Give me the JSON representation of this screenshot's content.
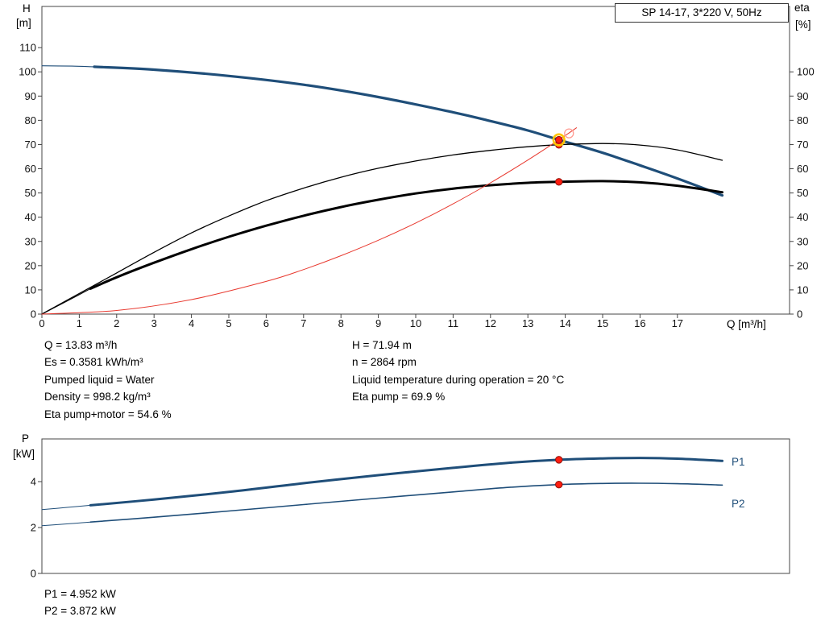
{
  "title_box": "SP 14-17, 3*220 V, 50Hz",
  "axis_labels": {
    "h": "H",
    "h_unit": "[m]",
    "eta": "eta",
    "eta_unit": "[%]",
    "q": "Q [m³/h]",
    "p": "P",
    "p_unit": "[kW]"
  },
  "colors": {
    "curve_blue": "#1f4e79",
    "curve_black": "#000000",
    "curve_red": "#e8392f",
    "marker_red": "#ff1d10",
    "marker_edge": "#8f120b",
    "marker_ring": "#ffc400",
    "marker_open": "#ff9d94",
    "axis": "#444444"
  },
  "info": {
    "left": [
      "Q = 13.83 m³/h",
      "Es = 0.3581 kWh/m³",
      "Pumped liquid = Water",
      "Density = 998.2 kg/m³",
      "Eta pump+motor = 54.6 %"
    ],
    "right": [
      "H = 71.94 m",
      "n = 2864 rpm",
      "Liquid temperature during operation = 20 °C",
      "Eta pump = 69.9 %"
    ],
    "power": [
      "P1 = 4.952 kW",
      "P2 = 3.872 kW"
    ]
  },
  "chart_data": [
    {
      "type": "line",
      "title": "SP 14-17, 3*220 V, 50Hz",
      "xlabel": "Q [m³/h]",
      "ylabel_left": "H [m]",
      "ylabel_right": "eta [%]",
      "xlim": [
        0,
        20
      ],
      "ylim": [
        0,
        127
      ],
      "grid": false,
      "x_ticks": [
        0,
        1,
        2,
        3,
        4,
        5,
        6,
        7,
        8,
        9,
        10,
        11,
        12,
        13,
        14,
        15,
        16,
        17
      ],
      "y_ticks_left": [
        0,
        10,
        20,
        30,
        40,
        50,
        60,
        70,
        80,
        90,
        100,
        110
      ],
      "y_ticks_right": [
        0,
        10,
        20,
        30,
        40,
        50,
        60,
        70,
        80,
        90,
        100
      ],
      "series": [
        {
          "name": "head-curve-lead",
          "axis": "left",
          "color": "#1f4e79",
          "width": 1.1,
          "points": [
            [
              0,
              102.5
            ],
            [
              0.8,
              102.35
            ],
            [
              1.4,
              102.1
            ]
          ]
        },
        {
          "name": "head-curve",
          "axis": "left",
          "color": "#1f4e79",
          "width": 3.2,
          "points": [
            [
              1.4,
              102.1
            ],
            [
              3,
              100.9
            ],
            [
              5,
              98.3
            ],
            [
              7,
              94.7
            ],
            [
              9,
              89.6
            ],
            [
              11,
              83.3
            ],
            [
              12,
              79.7
            ],
            [
              13,
              75.8
            ],
            [
              13.83,
              71.94
            ],
            [
              15,
              66.6
            ],
            [
              16,
              61.4
            ],
            [
              17,
              56.0
            ],
            [
              18.2,
              49.0
            ]
          ]
        },
        {
          "name": "eta-pump-curve",
          "axis": "right",
          "color": "#000000",
          "width": 1.3,
          "points": [
            [
              0,
              0
            ],
            [
              1,
              8.5
            ],
            [
              2,
              17
            ],
            [
              3,
              25.5
            ],
            [
              4,
              33.5
            ],
            [
              5,
              40.5
            ],
            [
              6,
              46.8
            ],
            [
              7,
              52
            ],
            [
              8,
              56.5
            ],
            [
              9,
              60.2
            ],
            [
              10,
              63.2
            ],
            [
              11,
              65.7
            ],
            [
              12,
              67.6
            ],
            [
              13,
              69.1
            ],
            [
              13.83,
              69.9
            ],
            [
              15,
              70.4
            ],
            [
              16,
              69.8
            ],
            [
              17,
              67.8
            ],
            [
              18.2,
              63.5
            ]
          ]
        },
        {
          "name": "eta-pump-motor-lead",
          "axis": "right",
          "color": "#000000",
          "width": 1.0,
          "points": [
            [
              0,
              0
            ],
            [
              0.7,
              5.6
            ],
            [
              1.3,
              10.5
            ]
          ]
        },
        {
          "name": "eta-pump-motor-curve",
          "axis": "right",
          "color": "#000000",
          "width": 3.0,
          "points": [
            [
              1.3,
              10.5
            ],
            [
              2,
              15.2
            ],
            [
              3,
              21.2
            ],
            [
              4,
              26.8
            ],
            [
              5,
              31.9
            ],
            [
              6,
              36.5
            ],
            [
              7,
              40.6
            ],
            [
              8,
              44.2
            ],
            [
              9,
              47.2
            ],
            [
              10,
              49.8
            ],
            [
              11,
              51.8
            ],
            [
              12,
              53.2
            ],
            [
              13,
              54.2
            ],
            [
              13.83,
              54.6
            ],
            [
              15,
              54.9
            ],
            [
              16,
              54.4
            ],
            [
              17,
              53.0
            ],
            [
              18.2,
              50.3
            ]
          ]
        },
        {
          "name": "system-curve",
          "axis": "left",
          "color": "#e8392f",
          "width": 1.0,
          "points": [
            [
              0,
              0
            ],
            [
              2,
              1.5
            ],
            [
              4,
              6.0
            ],
            [
              6,
              13.5
            ],
            [
              7,
              18.4
            ],
            [
              8,
              24.1
            ],
            [
              9,
              30.5
            ],
            [
              10,
              37.6
            ],
            [
              11,
              45.5
            ],
            [
              12,
              54.2
            ],
            [
              13,
              63.6
            ],
            [
              13.83,
              71.94
            ],
            [
              14.3,
              76.9
            ]
          ]
        }
      ],
      "markers": [
        {
          "name": "proposal-point",
          "x": 14.1,
          "y": 74.6,
          "style": "open"
        },
        {
          "name": "eta-pump-point",
          "x": 13.83,
          "y": 69.9,
          "style": "dot"
        },
        {
          "name": "eta-pump-motor-point",
          "x": 13.83,
          "y": 54.6,
          "style": "dot"
        },
        {
          "name": "duty-point",
          "x": 13.83,
          "y": 71.94,
          "style": "duty"
        }
      ]
    },
    {
      "type": "line",
      "xlabel": "Q [m³/h]",
      "ylabel": "P [kW]",
      "xlim": [
        0,
        20
      ],
      "ylim": [
        0,
        5.86
      ],
      "grid": false,
      "y_ticks": [
        0,
        2,
        4
      ],
      "series": [
        {
          "name": "p1-curve-lead",
          "color": "#1f4e79",
          "width": 1.0,
          "points": [
            [
              0,
              2.78
            ],
            [
              0.7,
              2.88
            ],
            [
              1.3,
              2.97
            ]
          ]
        },
        {
          "name": "p1-curve",
          "label": "P1",
          "color": "#1f4e79",
          "width": 3.0,
          "points": [
            [
              1.3,
              2.97
            ],
            [
              3,
              3.22
            ],
            [
              5,
              3.55
            ],
            [
              7,
              3.93
            ],
            [
              9,
              4.28
            ],
            [
              11,
              4.6
            ],
            [
              12.5,
              4.82
            ],
            [
              13.83,
              4.95
            ],
            [
              15,
              5.01
            ],
            [
              16,
              5.03
            ],
            [
              17,
              5.0
            ],
            [
              18.2,
              4.9
            ]
          ]
        },
        {
          "name": "p2-curve-lead",
          "color": "#1f4e79",
          "width": 1.0,
          "points": [
            [
              0,
              2.08
            ],
            [
              0.7,
              2.16
            ],
            [
              1.3,
              2.24
            ]
          ]
        },
        {
          "name": "p2-curve",
          "label": "P2",
          "color": "#1f4e79",
          "width": 1.6,
          "points": [
            [
              1.3,
              2.24
            ],
            [
              3,
              2.45
            ],
            [
              5,
              2.72
            ],
            [
              7,
              3.0
            ],
            [
              9,
              3.28
            ],
            [
              11,
              3.55
            ],
            [
              12.5,
              3.75
            ],
            [
              13.83,
              3.87
            ],
            [
              15,
              3.92
            ],
            [
              16,
              3.93
            ],
            [
              17,
              3.91
            ],
            [
              18.2,
              3.85
            ]
          ]
        }
      ],
      "markers": [
        {
          "name": "p1-duty-point",
          "x": 13.83,
          "y": 4.952,
          "style": "dot"
        },
        {
          "name": "p2-duty-point",
          "x": 13.83,
          "y": 3.872,
          "style": "dot"
        }
      ]
    }
  ]
}
